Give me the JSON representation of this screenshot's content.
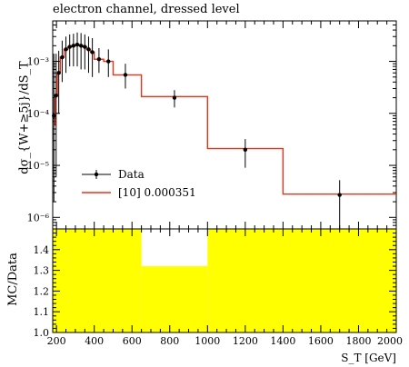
{
  "title": "electron channel, dressed level",
  "chart_data": [
    {
      "type": "line",
      "panel": "main",
      "ylabel": "dσ_{W+≥5j}/dS_T",
      "yscale": "log",
      "ylim": [
        6e-07,
        0.006
      ],
      "xlim": [
        180,
        2000
      ],
      "yticks": [
        {
          "value": 0.001,
          "label": "10⁻³"
        },
        {
          "value": 0.0001,
          "label": "10⁻⁴"
        },
        {
          "value": 1e-05,
          "label": "10⁻⁵"
        },
        {
          "value": 1e-06,
          "label": "10⁻⁶"
        }
      ],
      "legend": {
        "position": "lower-left",
        "entries": [
          "Data",
          "[10] 0.000351"
        ]
      },
      "series": [
        {
          "name": "Data",
          "style": "points",
          "color": "#000000",
          "x": [
            186,
            198,
            212,
            230,
            250,
            270,
            290,
            310,
            330,
            350,
            370,
            390,
            425,
            475,
            565,
            825,
            1200,
            1700
          ],
          "y": [
            9e-05,
            0.00022,
            0.0006,
            0.0012,
            0.0017,
            0.0019,
            0.002,
            0.0021,
            0.002,
            0.0019,
            0.0017,
            0.0015,
            0.0011,
            0.001,
            0.00055,
            0.0002,
            2e-05,
            2.7e-06
          ],
          "ylow": [
            2e-06,
            6e-06,
            0.0001,
            0.0004,
            0.0006,
            0.0008,
            0.0008,
            0.0008,
            0.0007,
            0.0007,
            0.0006,
            0.0005,
            0.0006,
            0.0005,
            0.0003,
            0.00013,
            9e-06,
            3.5e-07
          ],
          "yhigh": [
            0.0014,
            0.0014,
            0.0016,
            0.0025,
            0.003,
            0.0033,
            0.0034,
            0.0036,
            0.0035,
            0.0033,
            0.003,
            0.0028,
            0.0018,
            0.0017,
            0.0009,
            0.00028,
            3.2e-05,
            5.2e-06
          ]
        },
        {
          "name": "[10] 0.000351",
          "style": "step",
          "color": "#e8331a",
          "edges": [
            180,
            192,
            205,
            220,
            240,
            260,
            280,
            300,
            320,
            340,
            360,
            380,
            400,
            450,
            500,
            650,
            1000,
            1400,
            2000
          ],
          "values": [
            6e-05,
            0.00022,
            0.0006,
            0.0012,
            0.0017,
            0.0019,
            0.002,
            0.0021,
            0.002,
            0.0019,
            0.0017,
            0.0015,
            0.0011,
            0.001,
            0.00055,
            0.00021,
            2.1e-05,
            2.8e-06
          ]
        }
      ]
    },
    {
      "type": "area",
      "panel": "ratio",
      "xlabel": "S_T [GeV]",
      "ylabel": "MC/Data",
      "ylim": [
        1.0,
        1.5
      ],
      "xlim": [
        180,
        2000
      ],
      "xticks": [
        200,
        400,
        600,
        800,
        1000,
        1200,
        1400,
        1600,
        1800,
        2000
      ],
      "yticks": [
        1.0,
        1.1,
        1.2,
        1.3,
        1.4
      ],
      "band": {
        "color": "#ffff00",
        "edges": [
          180,
          650,
          1000,
          2000
        ],
        "upper": [
          1.5,
          1.32,
          1.5
        ]
      },
      "reference_line": 1.0
    }
  ]
}
